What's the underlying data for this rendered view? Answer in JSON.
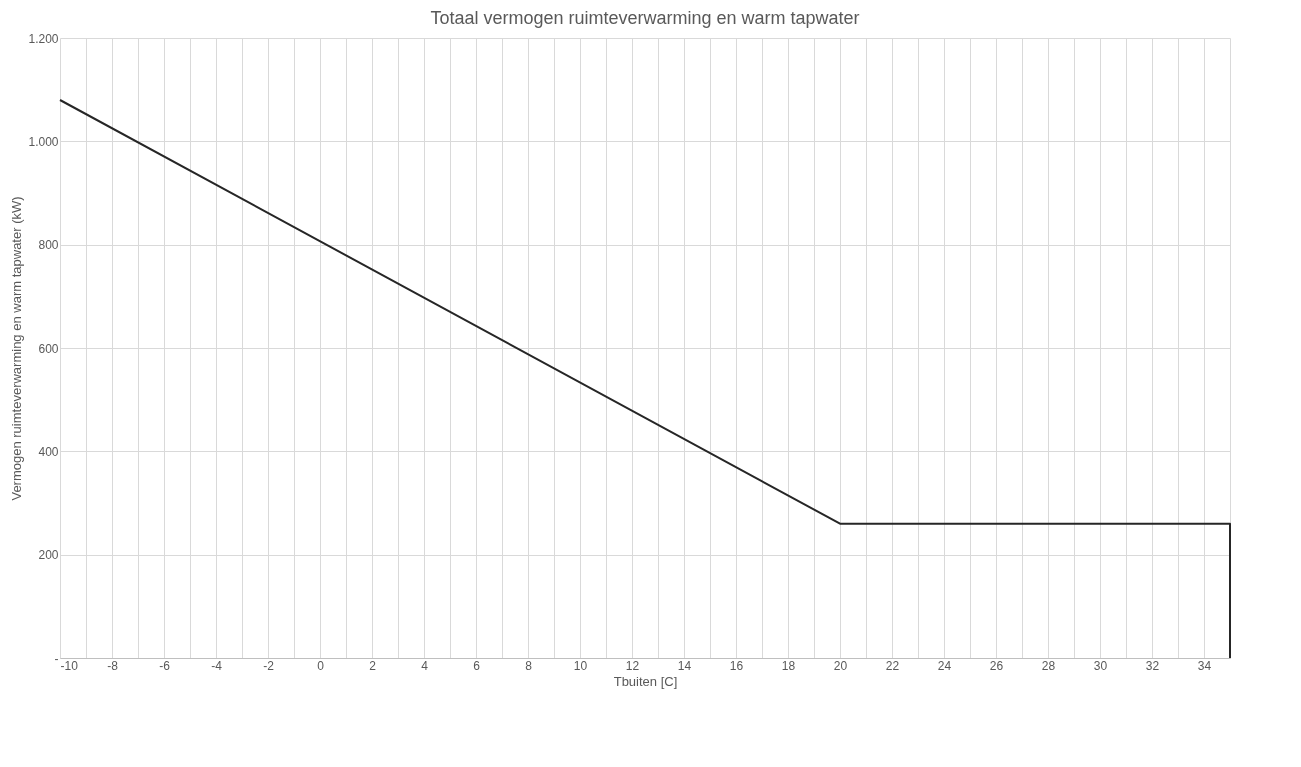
{
  "chart_data": {
    "type": "line",
    "title": "Totaal vermogen ruimteverwarming en warm tapwater",
    "xlabel": "Tbuiten [C]",
    "ylabel": "Vermogen ruimteverwarming  en warm tapwater (kW)",
    "series": [
      {
        "color": "#262626",
        "x": [
          -10,
          20,
          35,
          35
        ],
        "values": [
          1080,
          260,
          260,
          0
        ]
      }
    ],
    "xlim": [
      -10,
      35
    ],
    "xticks": [
      -10,
      {
        "value": -9,
        "label": null
      },
      -8,
      {
        "value": -7,
        "label": null
      },
      -6,
      {
        "value": -5,
        "label": null
      },
      -4,
      {
        "value": -3,
        "label": null
      },
      -2,
      {
        "value": -1,
        "label": null
      },
      0,
      {
        "value": 1,
        "label": null
      },
      2,
      {
        "value": 3,
        "label": null
      },
      4,
      {
        "value": 5,
        "label": null
      },
      6,
      {
        "value": 7,
        "label": null
      },
      8,
      {
        "value": 9,
        "label": null
      },
      10,
      {
        "value": 11,
        "label": null
      },
      12,
      {
        "value": 13,
        "label": null
      },
      14,
      {
        "value": 15,
        "label": null
      },
      16,
      {
        "value": 17,
        "label": null
      },
      18,
      {
        "value": 19,
        "label": null
      },
      20,
      {
        "value": 21,
        "label": null
      },
      22,
      {
        "value": 23,
        "label": null
      },
      24,
      {
        "value": 25,
        "label": null
      },
      26,
      {
        "value": 27,
        "label": null
      },
      28,
      {
        "value": 29,
        "label": null
      },
      30,
      {
        "value": 31,
        "label": null
      },
      32,
      {
        "value": 33,
        "label": null
      },
      34,
      {
        "value": 35,
        "label": null
      }
    ],
    "ylim": [
      0,
      1200
    ],
    "yticks": [
      {
        "value": 0,
        "label": "-"
      },
      200,
      400,
      600,
      800,
      {
        "value": 1000,
        "label": "1.000"
      },
      {
        "value": 1200,
        "label": "1.200"
      }
    ],
    "grid": true,
    "marker": "none",
    "line_style": "solid"
  }
}
